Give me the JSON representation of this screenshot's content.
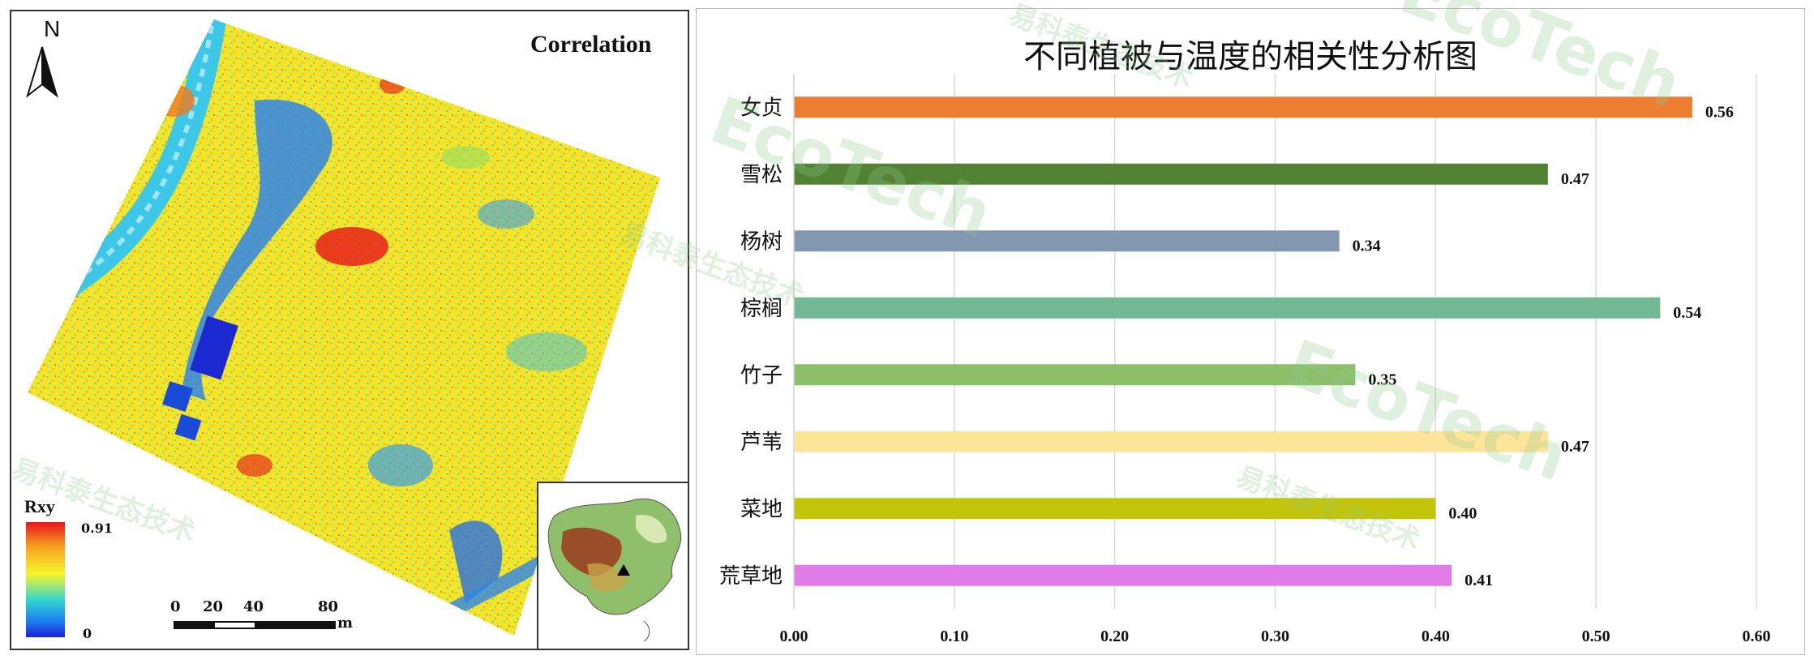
{
  "map": {
    "title": "Correlation",
    "north_label": "N",
    "legend": {
      "title": "Rxy",
      "max": "0.91",
      "min": "0",
      "colors": [
        "#e8141b",
        "#f7a51e",
        "#f5f52a",
        "#2fd4d0",
        "#1e7ff0",
        "#1a22d8"
      ]
    },
    "scale": {
      "ticks": [
        "0",
        "20",
        "40",
        "80"
      ],
      "unit": "m"
    }
  },
  "watermark": {
    "text": "易科泰生态技术",
    "brand": "EcoTech",
    "reg": "®"
  },
  "chart_data": {
    "type": "bar",
    "orientation": "horizontal",
    "title": "不同植被与温度的相关性分析图",
    "xlabel": "",
    "ylabel": "",
    "categories": [
      "女贞",
      "雪松",
      "杨树",
      "棕榈",
      "竹子",
      "芦苇",
      "菜地",
      "荒草地"
    ],
    "values": [
      0.56,
      0.47,
      0.34,
      0.54,
      0.35,
      0.47,
      0.4,
      0.41
    ],
    "data_labels": [
      "0.56",
      "0.47",
      "0.34",
      "0.54",
      "0.35",
      "0.47",
      "0.40",
      "0.41"
    ],
    "colors": [
      "#ed7d31",
      "#548235",
      "#8497b0",
      "#70b994",
      "#8cc068",
      "#ffe59a",
      "#c3c50a",
      "#e07be8"
    ],
    "xlim": [
      0,
      0.6
    ],
    "x_ticks": [
      "0.00",
      "0.10",
      "0.20",
      "0.30",
      "0.40",
      "0.50",
      "0.60"
    ],
    "grid": true,
    "legend": false
  }
}
